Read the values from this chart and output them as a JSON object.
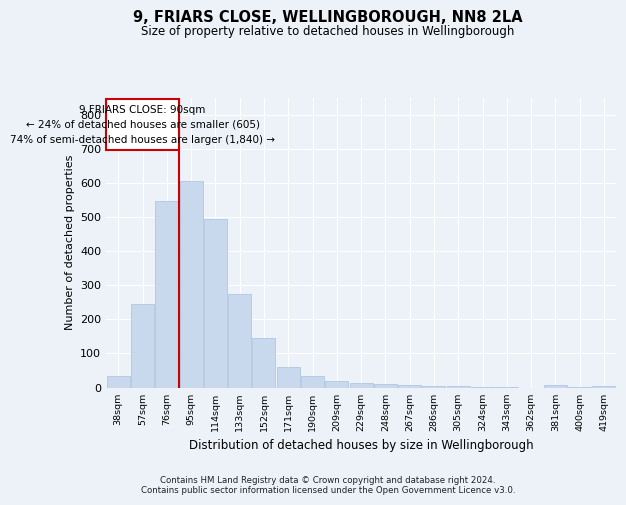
{
  "title1": "9, FRIARS CLOSE, WELLINGBOROUGH, NN8 2LA",
  "title2": "Size of property relative to detached houses in Wellingborough",
  "xlabel": "Distribution of detached houses by size in Wellingborough",
  "ylabel": "Number of detached properties",
  "categories": [
    "38sqm",
    "57sqm",
    "76sqm",
    "95sqm",
    "114sqm",
    "133sqm",
    "152sqm",
    "171sqm",
    "190sqm",
    "209sqm",
    "229sqm",
    "248sqm",
    "267sqm",
    "286sqm",
    "305sqm",
    "324sqm",
    "343sqm",
    "362sqm",
    "381sqm",
    "400sqm",
    "419sqm"
  ],
  "values": [
    35,
    245,
    548,
    605,
    493,
    275,
    145,
    60,
    33,
    18,
    12,
    10,
    8,
    3,
    3,
    1,
    1,
    0,
    6,
    1,
    3
  ],
  "bar_color": "#c8d9ee",
  "bar_edge_color": "#aac0de",
  "vline_x_index": 3,
  "vline_color": "#cc0000",
  "annotation_line1": "9 FRIARS CLOSE: 90sqm",
  "annotation_line2": "← 24% of detached houses are smaller (605)",
  "annotation_line3": "74% of semi-detached houses are larger (1,840) →",
  "annotation_box_color": "#ffffff",
  "annotation_box_edge": "#cc0000",
  "ylim": [
    0,
    850
  ],
  "yticks": [
    0,
    100,
    200,
    300,
    400,
    500,
    600,
    700,
    800
  ],
  "footer_text": "Contains HM Land Registry data © Crown copyright and database right 2024.\nContains public sector information licensed under the Open Government Licence v3.0.",
  "bg_color": "#edf2f9",
  "plot_bg_color": "#edf2f9"
}
